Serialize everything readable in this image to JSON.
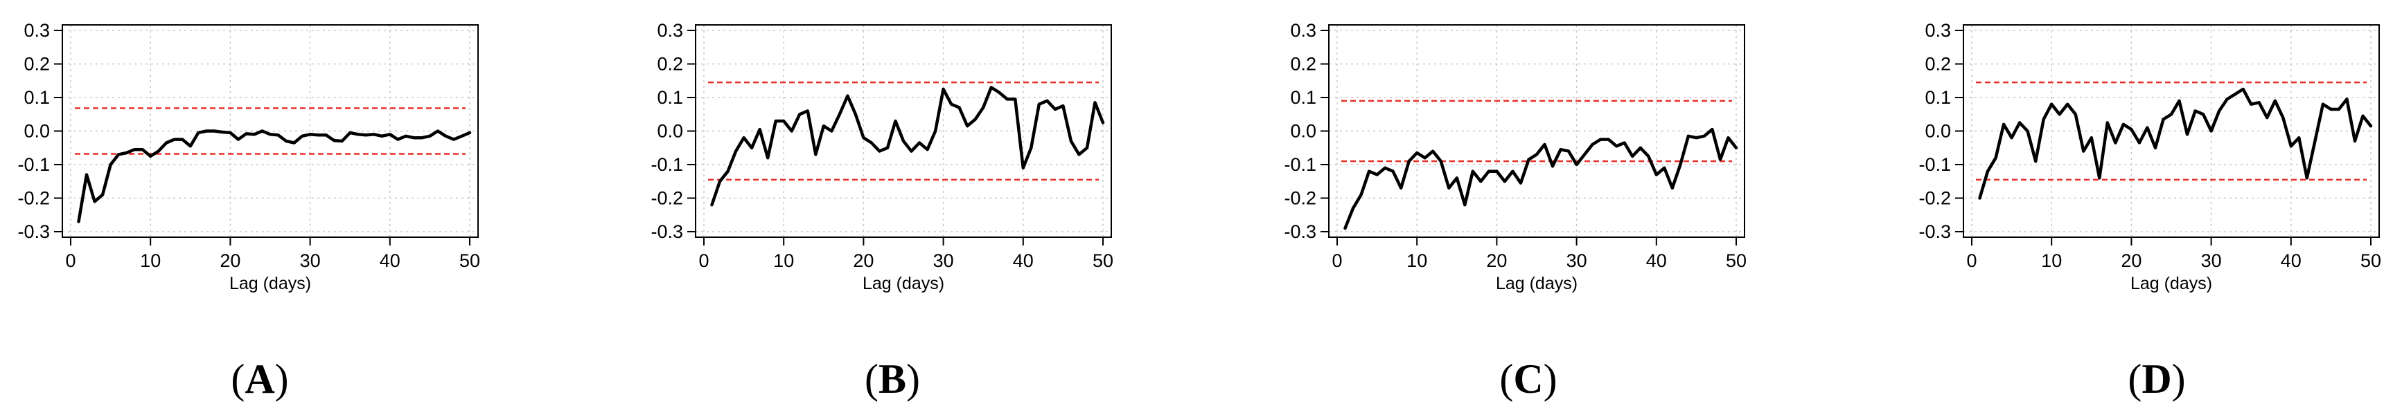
{
  "chart_data": [
    {
      "type": "line",
      "panel_label": "A",
      "xlabel": "Lag (days)",
      "xlim": [
        0,
        50
      ],
      "ylim": [
        -0.3,
        0.3
      ],
      "xticks": [
        0,
        10,
        20,
        30,
        40,
        50
      ],
      "yticks": [
        0.3,
        0.2,
        0.1,
        0.0,
        -0.1,
        -0.2,
        -0.3
      ],
      "grid": true,
      "confidence_bounds": [
        0.068,
        -0.068
      ],
      "x": [
        1,
        2,
        3,
        4,
        5,
        6,
        7,
        8,
        9,
        10,
        11,
        12,
        13,
        14,
        15,
        16,
        17,
        18,
        19,
        20,
        21,
        22,
        23,
        24,
        25,
        26,
        27,
        28,
        29,
        30,
        31,
        32,
        33,
        34,
        35,
        36,
        37,
        38,
        39,
        40,
        41,
        42,
        43,
        44,
        45,
        46,
        47,
        48,
        49,
        50
      ],
      "y": [
        -0.27,
        -0.13,
        -0.21,
        -0.19,
        -0.1,
        -0.07,
        -0.065,
        -0.055,
        -0.055,
        -0.075,
        -0.06,
        -0.035,
        -0.025,
        -0.025,
        -0.045,
        -0.005,
        0.0,
        0.0,
        -0.003,
        -0.005,
        -0.025,
        -0.008,
        -0.01,
        0.0,
        -0.01,
        -0.012,
        -0.03,
        -0.035,
        -0.015,
        -0.01,
        -0.012,
        -0.012,
        -0.028,
        -0.03,
        -0.005,
        -0.01,
        -0.012,
        -0.01,
        -0.015,
        -0.01,
        -0.025,
        -0.015,
        -0.02,
        -0.02,
        -0.015,
        0.0,
        -0.015,
        -0.025,
        -0.015,
        -0.005
      ]
    },
    {
      "type": "line",
      "panel_label": "B",
      "xlabel": "Lag (days)",
      "xlim": [
        0,
        50
      ],
      "ylim": [
        -0.3,
        0.3
      ],
      "xticks": [
        0,
        10,
        20,
        30,
        40,
        50
      ],
      "yticks": [
        0.3,
        0.2,
        0.1,
        0.0,
        -0.1,
        -0.2,
        -0.3
      ],
      "grid": true,
      "confidence_bounds": [
        0.145,
        -0.145
      ],
      "x": [
        1,
        2,
        3,
        4,
        5,
        6,
        7,
        8,
        9,
        10,
        11,
        12,
        13,
        14,
        15,
        16,
        17,
        18,
        19,
        20,
        21,
        22,
        23,
        24,
        25,
        26,
        27,
        28,
        29,
        30,
        31,
        32,
        33,
        34,
        35,
        36,
        37,
        38,
        39,
        40,
        41,
        42,
        43,
        44,
        45,
        46,
        47,
        48,
        49,
        50
      ],
      "y": [
        -0.22,
        -0.15,
        -0.12,
        -0.06,
        -0.02,
        -0.05,
        0.005,
        -0.08,
        0.03,
        0.03,
        0.0,
        0.05,
        0.06,
        -0.07,
        0.015,
        0.0,
        0.05,
        0.105,
        0.05,
        -0.02,
        -0.035,
        -0.06,
        -0.05,
        0.03,
        -0.03,
        -0.06,
        -0.035,
        -0.055,
        0.0,
        0.125,
        0.08,
        0.07,
        0.015,
        0.035,
        0.07,
        0.13,
        0.115,
        0.095,
        0.095,
        -0.11,
        -0.05,
        0.08,
        0.09,
        0.065,
        0.075,
        -0.03,
        -0.07,
        -0.05,
        0.085,
        0.025
      ]
    },
    {
      "type": "line",
      "panel_label": "C",
      "xlabel": "Lag (days)",
      "xlim": [
        0,
        50
      ],
      "ylim": [
        -0.3,
        0.3
      ],
      "xticks": [
        0,
        10,
        20,
        30,
        40,
        50
      ],
      "yticks": [
        0.3,
        0.2,
        0.1,
        0.0,
        -0.1,
        -0.2,
        -0.3
      ],
      "grid": true,
      "confidence_bounds": [
        0.09,
        -0.09
      ],
      "x": [
        1,
        2,
        3,
        4,
        5,
        6,
        7,
        8,
        9,
        10,
        11,
        12,
        13,
        14,
        15,
        16,
        17,
        18,
        19,
        20,
        21,
        22,
        23,
        24,
        25,
        26,
        27,
        28,
        29,
        30,
        31,
        32,
        33,
        34,
        35,
        36,
        37,
        38,
        39,
        40,
        41,
        42,
        43,
        44,
        45,
        46,
        47,
        48,
        49,
        50
      ],
      "y": [
        -0.29,
        -0.23,
        -0.19,
        -0.12,
        -0.13,
        -0.11,
        -0.12,
        -0.17,
        -0.09,
        -0.065,
        -0.08,
        -0.06,
        -0.09,
        -0.17,
        -0.14,
        -0.22,
        -0.12,
        -0.15,
        -0.12,
        -0.12,
        -0.15,
        -0.12,
        -0.155,
        -0.085,
        -0.07,
        -0.04,
        -0.105,
        -0.055,
        -0.06,
        -0.1,
        -0.07,
        -0.04,
        -0.025,
        -0.025,
        -0.045,
        -0.035,
        -0.075,
        -0.05,
        -0.075,
        -0.13,
        -0.11,
        -0.17,
        -0.1,
        -0.015,
        -0.02,
        -0.015,
        0.005,
        -0.085,
        -0.02,
        -0.05
      ]
    },
    {
      "type": "line",
      "panel_label": "D",
      "xlabel": "Lag (days)",
      "xlim": [
        0,
        50
      ],
      "ylim": [
        -0.3,
        0.3
      ],
      "xticks": [
        0,
        10,
        20,
        30,
        40,
        50
      ],
      "yticks": [
        0.3,
        0.2,
        0.1,
        0.0,
        -0.1,
        -0.2,
        -0.3
      ],
      "grid": true,
      "confidence_bounds": [
        0.145,
        -0.145
      ],
      "x": [
        1,
        2,
        3,
        4,
        5,
        6,
        7,
        8,
        9,
        10,
        11,
        12,
        13,
        14,
        15,
        16,
        17,
        18,
        19,
        20,
        21,
        22,
        23,
        24,
        25,
        26,
        27,
        28,
        29,
        30,
        31,
        32,
        33,
        34,
        35,
        36,
        37,
        38,
        39,
        40,
        41,
        42,
        43,
        44,
        45,
        46,
        47,
        48,
        49,
        50
      ],
      "y": [
        -0.2,
        -0.12,
        -0.08,
        0.02,
        -0.02,
        0.025,
        0.0,
        -0.09,
        0.035,
        0.08,
        0.05,
        0.08,
        0.05,
        -0.06,
        -0.02,
        -0.14,
        0.025,
        -0.035,
        0.02,
        0.005,
        -0.035,
        0.01,
        -0.05,
        0.035,
        0.05,
        0.09,
        -0.01,
        0.06,
        0.05,
        0.0,
        0.06,
        0.095,
        0.11,
        0.125,
        0.08,
        0.085,
        0.04,
        0.09,
        0.04,
        -0.045,
        -0.02,
        -0.14,
        -0.03,
        0.08,
        0.065,
        0.065,
        0.095,
        -0.03,
        0.045,
        0.015
      ]
    }
  ],
  "colors": {
    "series": "#000000",
    "confidence_bounds": "#e8302a",
    "grid": "#c8c8c8",
    "axis": "#000000"
  }
}
